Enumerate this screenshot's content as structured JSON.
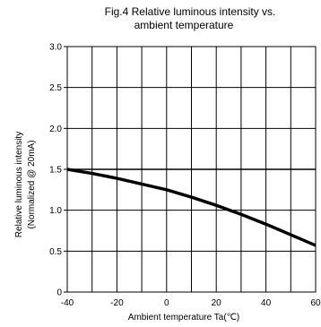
{
  "chart_data": {
    "type": "line",
    "title_line1": "Fig.4 Relative luminous intensity vs.",
    "title_line2": "ambient temperature",
    "ylabel_line1": "Relative luminous intensity",
    "ylabel_line2": "(Normalized @ 20mA)",
    "xlabel": "Ambient temperature Ta(℃)",
    "xlim": [
      -40,
      60
    ],
    "ylim": [
      0,
      3.0
    ],
    "xticks": [
      -40,
      -20,
      0,
      20,
      40,
      60
    ],
    "xtick_labels": [
      "-40",
      "-20",
      "0",
      "20",
      "40",
      "60"
    ],
    "xgrid": [
      -40,
      -30,
      -20,
      -10,
      0,
      10,
      20,
      30,
      40,
      50,
      60
    ],
    "yticks": [
      0,
      0.5,
      1.0,
      1.5,
      2.0,
      2.5,
      3.0
    ],
    "ytick_labels": [
      "0",
      "0.5",
      "1.0",
      "1.5",
      "2.0",
      "2.5",
      "3.0"
    ],
    "grid": true,
    "reference_line": {
      "y": 1.5
    },
    "series": [
      {
        "x": [
          -40,
          -30,
          -20,
          -10,
          0,
          10,
          20,
          30,
          40,
          50,
          60
        ],
        "values": [
          1.5,
          1.45,
          1.39,
          1.32,
          1.25,
          1.16,
          1.06,
          0.95,
          0.83,
          0.7,
          0.57
        ]
      }
    ]
  }
}
